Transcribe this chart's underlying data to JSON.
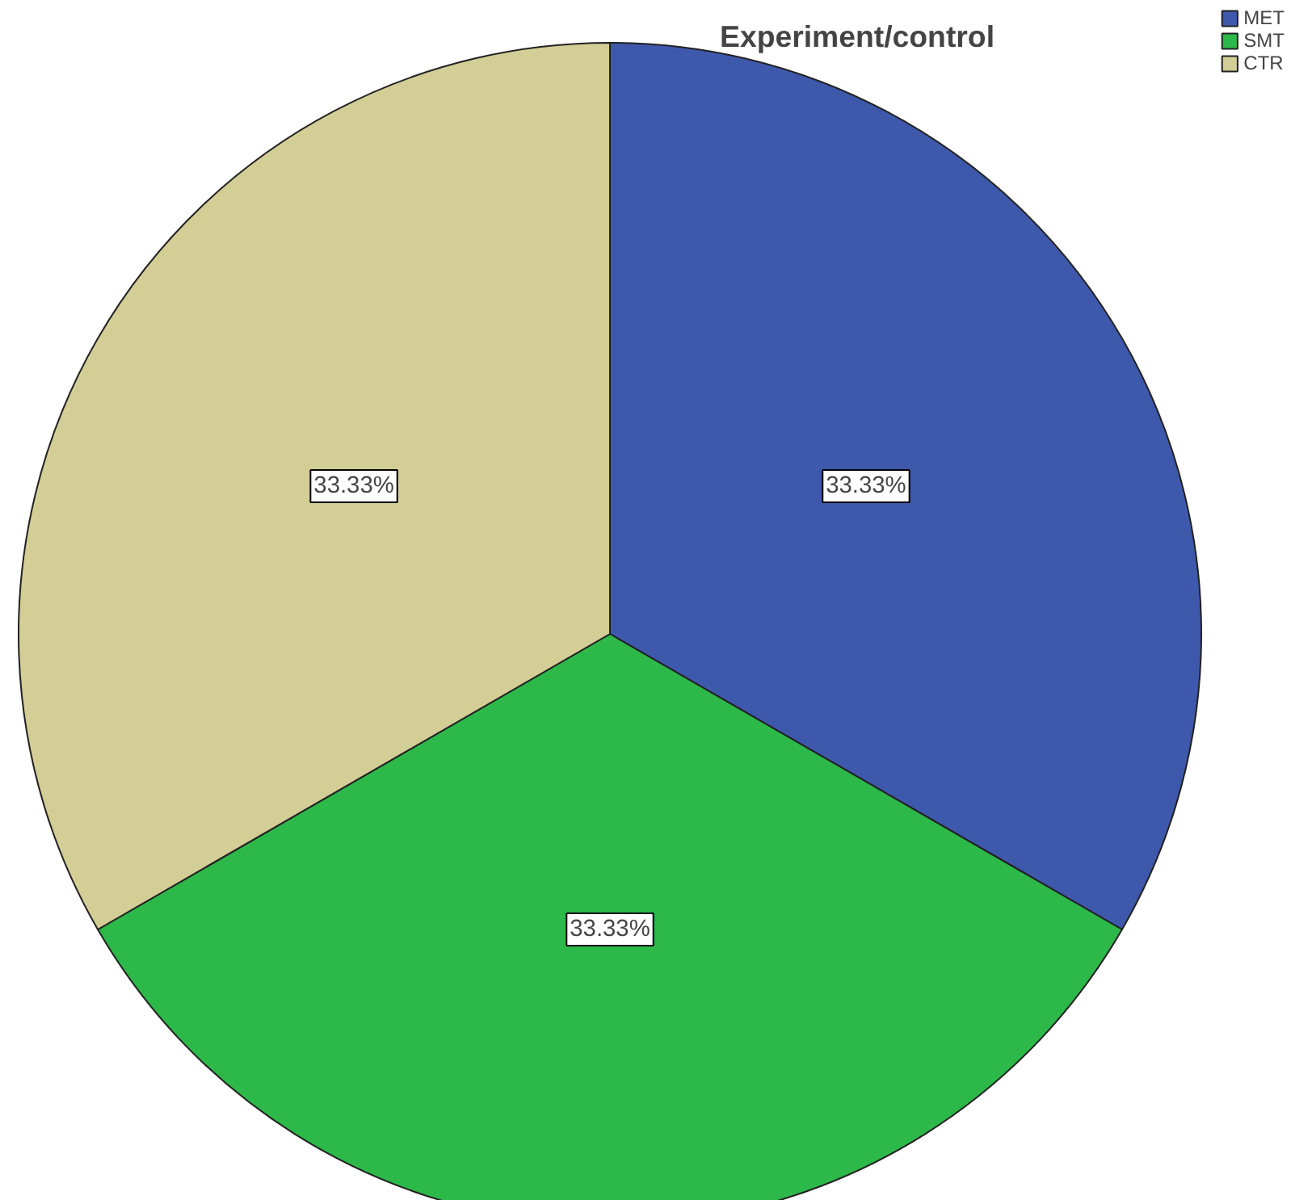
{
  "chart_data": {
    "type": "pie",
    "title": "Experiment/control",
    "categories": [
      "MET",
      "SMT",
      "CTR"
    ],
    "values": [
      33.33,
      33.33,
      33.33
    ],
    "colors": [
      "#3e58ac",
      "#2db84a",
      "#d3cd96"
    ],
    "value_labels": [
      "33.33%",
      "33.33%",
      "33.33%"
    ],
    "legend": "top right"
  }
}
